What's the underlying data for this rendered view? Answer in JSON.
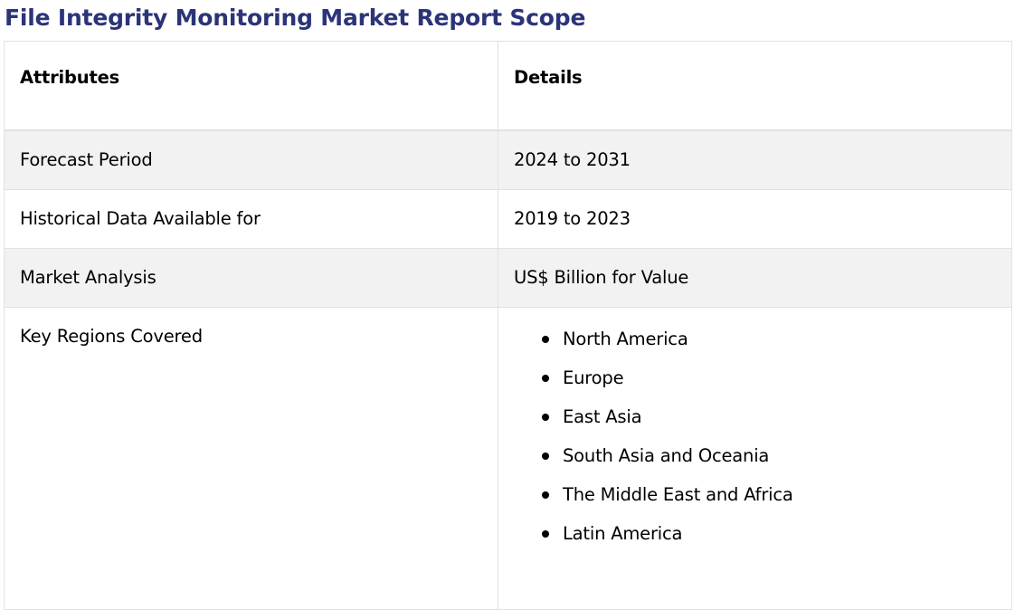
{
  "page": {
    "title": "File Integrity Monitoring Market Report Scope"
  },
  "table": {
    "headers": {
      "attributes": "Attributes",
      "details": "Details"
    },
    "rows": [
      {
        "attribute": "Forecast Period",
        "detail": "2024 to 2031"
      },
      {
        "attribute": "Historical Data Available for",
        "detail": "2019 to 2023"
      },
      {
        "attribute": "Market Analysis",
        "detail": "US$ Billion for Value"
      }
    ],
    "regions_row": {
      "attribute": "Key Regions Covered",
      "items": [
        "North America",
        "Europe",
        "East Asia",
        "South Asia and Oceania",
        "The Middle East and Africa",
        "Latin America"
      ]
    }
  },
  "colors": {
    "title": "#2c3478",
    "shaded_row": "#f2f2f2",
    "border": "#e1e1e1"
  }
}
